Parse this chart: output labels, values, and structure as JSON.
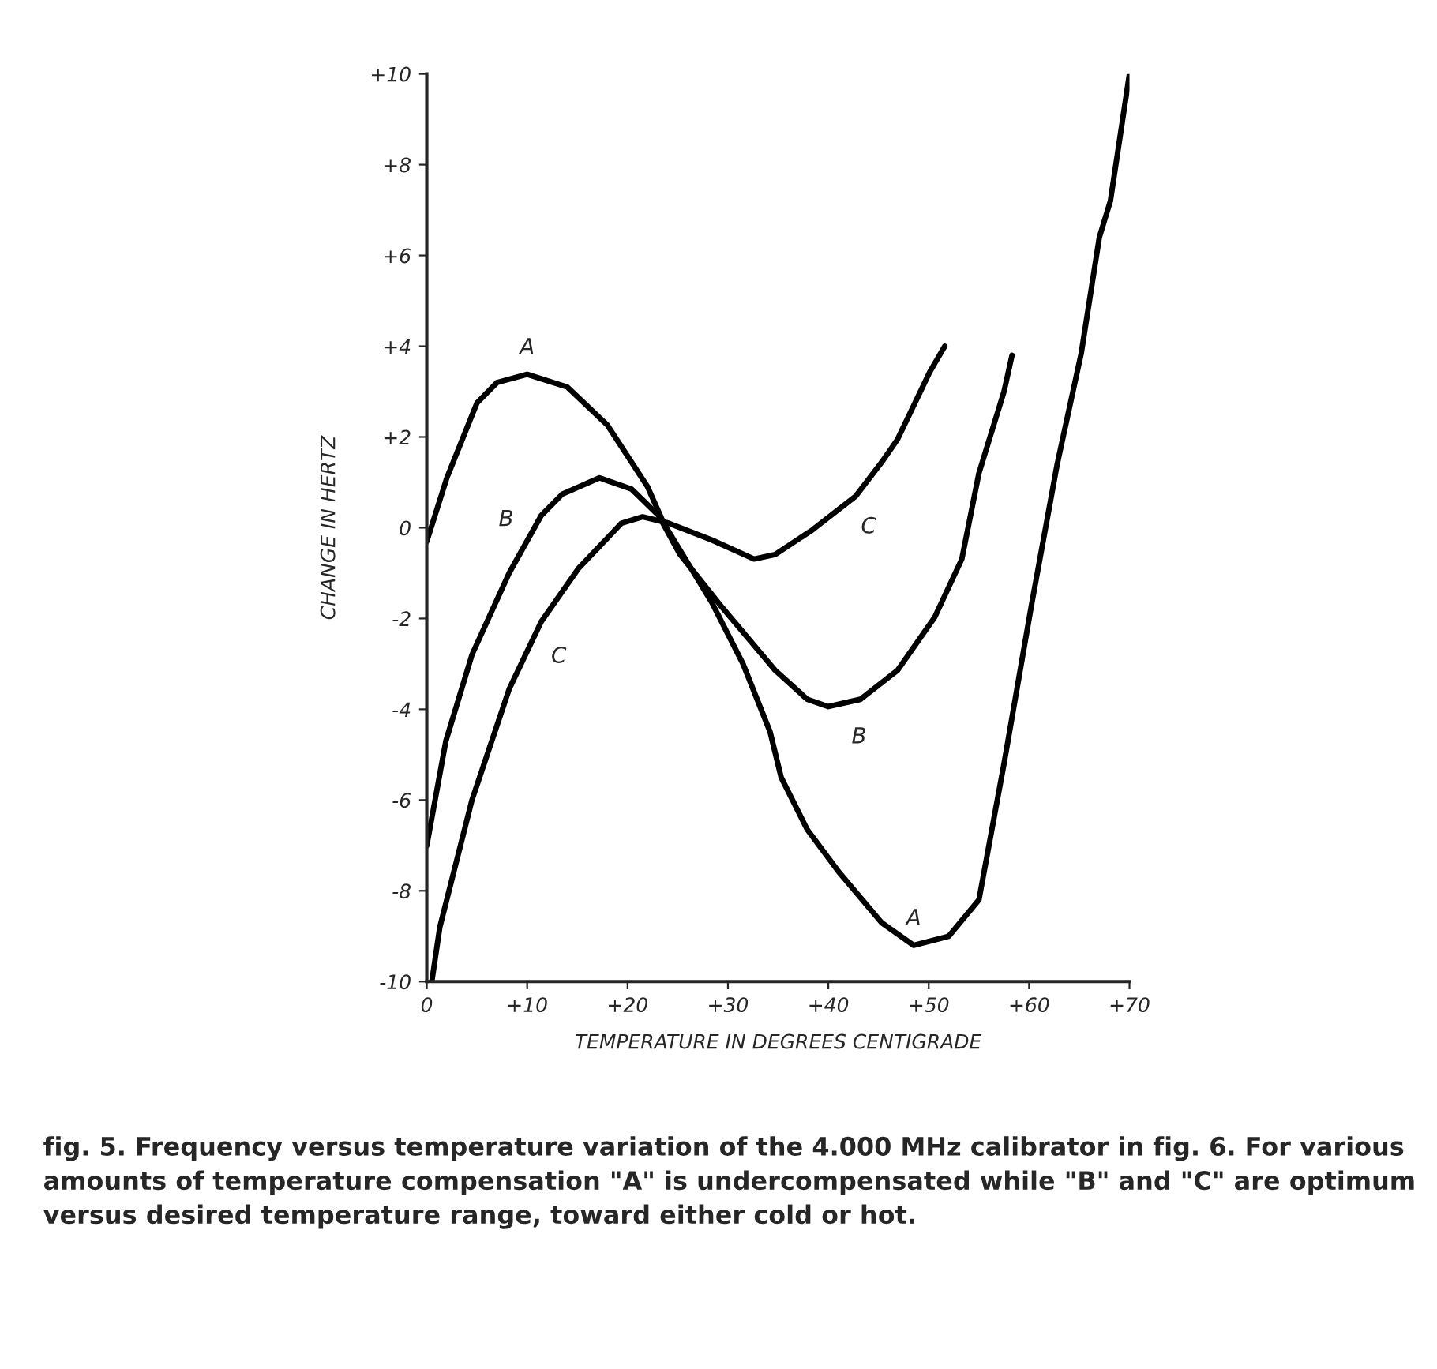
{
  "chart_data": {
    "type": "line",
    "xlabel": "TEMPERATURE IN DEGREES CENTIGRADE",
    "ylabel": "CHANGE IN HERTZ",
    "xlim": [
      0,
      70
    ],
    "ylim": [
      -10,
      10
    ],
    "xticks": [
      0,
      {
        "value": 10,
        "label": "+10"
      },
      {
        "value": 20,
        "label": "+20"
      },
      {
        "value": 30,
        "label": "+30"
      },
      {
        "value": 40,
        "label": "+40"
      },
      {
        "value": 50,
        "label": "+50"
      },
      {
        "value": 60,
        "label": "+60"
      },
      {
        "value": 70,
        "label": "+70"
      }
    ],
    "yticks": [
      -10,
      -8,
      -6,
      -4,
      -2,
      0,
      {
        "value": 2,
        "label": "+2"
      },
      {
        "value": 4,
        "label": "+4"
      },
      {
        "value": 6,
        "label": "+6"
      },
      {
        "value": 8,
        "label": "+8"
      },
      {
        "value": 10,
        "label": "+10"
      }
    ],
    "grid": false,
    "legend": false,
    "marker": "none",
    "line_style": "solid",
    "series": [
      {
        "color": "#000000",
        "x": [
          0,
          2,
          5,
          7,
          10,
          14,
          18,
          22,
          23.6,
          28.4,
          31.5,
          34.2,
          35.3,
          37.9,
          41.1,
          45.3,
          48.5,
          52,
          55,
          57.5,
          60.2,
          62.8,
          65.2,
          67,
          68.1,
          70
        ],
        "values": [
          -0.3,
          1.1,
          2.75,
          3.2,
          3.38,
          3.1,
          2.26,
          0.9,
          0.1,
          -1.65,
          -3.0,
          -4.5,
          -5.5,
          -6.65,
          -7.6,
          -8.7,
          -9.2,
          -9.0,
          -8.2,
          -5.2,
          -1.75,
          1.4,
          3.85,
          6.4,
          7.2,
          10
        ]
      },
      {
        "color": "#000000",
        "x": [
          0,
          1.9,
          4.5,
          8.2,
          11.4,
          13.5,
          17.2,
          20.4,
          23.1,
          25.2,
          29.4,
          34.7,
          37.9,
          40,
          43.2,
          46.9,
          50.6,
          53.3,
          55,
          57.5,
          58.3
        ],
        "values": [
          -7.0,
          -4.7,
          -2.8,
          -1.0,
          0.27,
          0.74,
          1.1,
          0.85,
          0.27,
          -0.58,
          -1.75,
          -3.14,
          -3.78,
          -3.94,
          -3.78,
          -3.14,
          -1.97,
          -0.69,
          1.2,
          3.0,
          3.8
        ]
      },
      {
        "color": "#000000",
        "x": [
          0.5,
          1.3,
          4.5,
          8.2,
          11.4,
          15.1,
          19.4,
          21.5,
          24.1,
          28.4,
          32.6,
          34.7,
          38.4,
          42.7,
          45.3,
          46.9,
          50.1,
          51.6
        ],
        "values": [
          -10,
          -8.8,
          -6.0,
          -3.56,
          -2.07,
          -0.9,
          0.1,
          0.24,
          0.1,
          -0.27,
          -0.69,
          -0.59,
          -0.05,
          0.69,
          1.44,
          1.95,
          3.43,
          4.0
        ]
      }
    ],
    "annotations": [
      {
        "text": "A",
        "x": 10,
        "y": 3.38
      },
      {
        "text": "A",
        "x": 48.5,
        "y": -9.2
      },
      {
        "text": "B",
        "x": 11.4,
        "y": 0.27
      },
      {
        "text": "B",
        "x": 40,
        "y": -3.94
      },
      {
        "text": "C",
        "x": 11.4,
        "y": -2.07
      },
      {
        "text": "C",
        "x": 42.7,
        "y": 0.69
      },
      "fig. 5. Frequency versus temperature variation of the 4.000 MHz calibrator in fig. 6. For various amounts of temperature compensation \"A\" is undercompensated while \"B\" and \"C\" are optimum versus desired temperature range, toward either cold or hot."
    ]
  }
}
